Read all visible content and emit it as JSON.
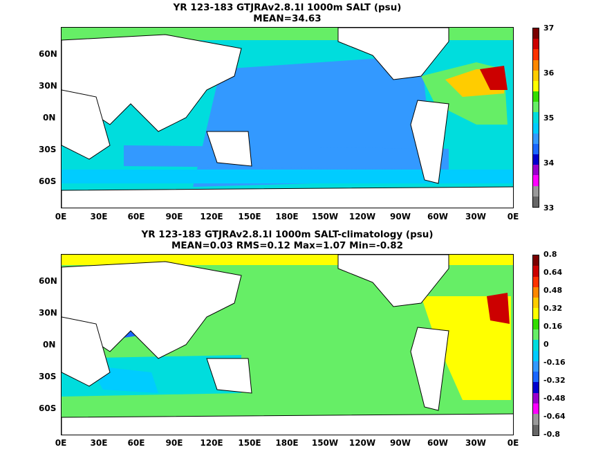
{
  "panels": [
    {
      "title_line1": "YR 123-183 GTJRAv2.8.1l 1000m SALT (psu)",
      "title_line2": "MEAN=34.63",
      "colorbar_labels": [
        "37",
        "36",
        "35",
        "34",
        "33"
      ],
      "colorbar_colors": [
        "#7a0000",
        "#cc0000",
        "#ff3300",
        "#ff8800",
        "#ffcc00",
        "#ffff00",
        "#33dd00",
        "#66ee66",
        "#00dddd",
        "#00ccff",
        "#3399ff",
        "#1a66ff",
        "#0000cc",
        "#9900cc",
        "#ff00ff",
        "#999999",
        "#666666"
      ]
    },
    {
      "title_line1": "YR 123-183 GTJRAv2.8.1l 1000m SALT-climatology (psu)",
      "title_line2": "MEAN=0.03   RMS=0.12   Max=1.07   Min=-0.82",
      "colorbar_labels": [
        "0.8",
        "0.64",
        "0.48",
        "0.32",
        "0.16",
        "0",
        "-0.16",
        "-0.32",
        "-0.48",
        "-0.64",
        "-0.8"
      ],
      "colorbar_colors": [
        "#7a0000",
        "#cc0000",
        "#ff3300",
        "#ff8800",
        "#ffcc00",
        "#ffff00",
        "#33dd00",
        "#66ee66",
        "#00dddd",
        "#00ccff",
        "#3399ff",
        "#1a66ff",
        "#0000cc",
        "#9900cc",
        "#ff00ff",
        "#999999",
        "#666666"
      ]
    }
  ],
  "lat_labels": [
    "60N",
    "30N",
    "0N",
    "30S",
    "60S"
  ],
  "lon_labels": [
    "0E",
    "30E",
    "60E",
    "90E",
    "120E",
    "150E",
    "180E",
    "150W",
    "120W",
    "90W",
    "60W",
    "30W",
    "0E"
  ]
}
